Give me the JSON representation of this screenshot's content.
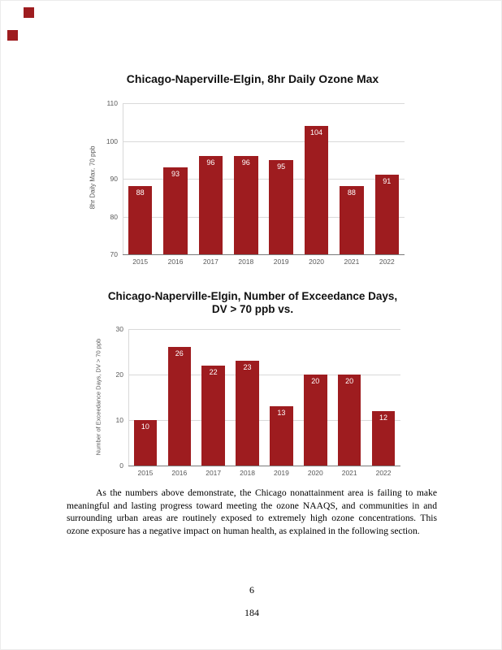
{
  "colors": {
    "bar": "#9e1c1f",
    "grid": "#d9d9d9",
    "axis": "#7a7a7a",
    "tick_text": "#595959"
  },
  "page": {
    "paragraph": "As the numbers above demonstrate, the Chicago nonattainment area is failing to make meaningful and lasting progress toward meeting the ozone NAAQS, and communities in and surrounding urban areas are routinely exposed to extremely high ozone concentrations. This ozone exposure has a negative impact on human health, as explained in the following section.",
    "page_number": "6",
    "stamp_number": "184"
  },
  "chart_data": [
    {
      "type": "bar",
      "title": "Chicago-Naperville-Elgin, 8hr Daily Ozone Max",
      "ylabel": "8hr Daily Max. 70 ppb",
      "categories": [
        "2015",
        "2016",
        "2017",
        "2018",
        "2019",
        "2020",
        "2021",
        "2022"
      ],
      "values": [
        88,
        93,
        96,
        96,
        95,
        104,
        88,
        91
      ],
      "ylim": [
        70,
        110
      ],
      "yticks": [
        70,
        80,
        90,
        100,
        110
      ],
      "grid": true,
      "bar_labels": true,
      "legend": "none"
    },
    {
      "type": "bar",
      "title": "Chicago-Naperville-Elgin, Number of Exceedance Days,\nDV > 70 ppb vs.",
      "ylabel": "Number of Exceedance Days, DV > 70 ppb",
      "categories": [
        "2015",
        "2016",
        "2017",
        "2018",
        "2019",
        "2020",
        "2021",
        "2022"
      ],
      "values": [
        10,
        26,
        22,
        23,
        13,
        20,
        20,
        12
      ],
      "ylim": [
        0,
        30
      ],
      "yticks": [
        0,
        10,
        20,
        30
      ],
      "grid": true,
      "bar_labels": true,
      "legend": "none"
    }
  ]
}
